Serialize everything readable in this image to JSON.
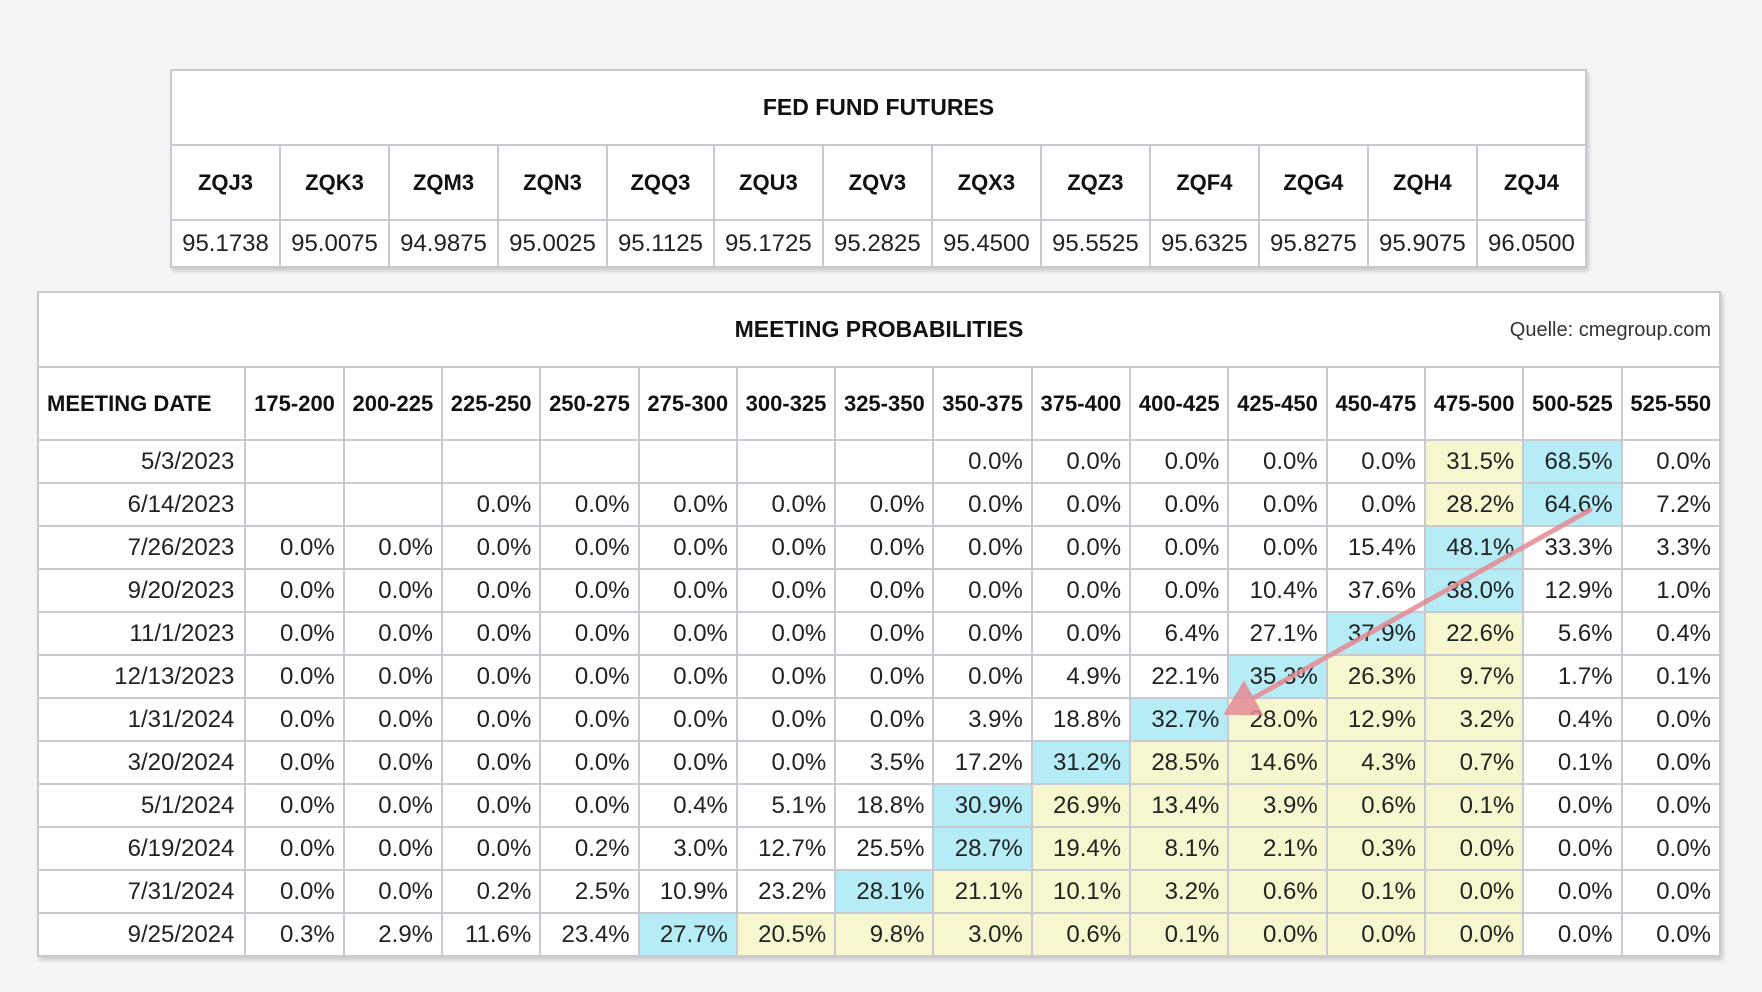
{
  "colors": {
    "cyan": "#b6ecf6",
    "yellow": "#f7f7cf",
    "arrow": "#e58a93",
    "border": "#c9c9d2"
  },
  "fed": {
    "title": "FED FUND FUTURES",
    "contracts": [
      "ZQJ3",
      "ZQK3",
      "ZQM3",
      "ZQN3",
      "ZQQ3",
      "ZQU3",
      "ZQV3",
      "ZQX3",
      "ZQZ3",
      "ZQF4",
      "ZQG4",
      "ZQH4",
      "ZQJ4"
    ],
    "prices": [
      "95.1738",
      "95.0075",
      "94.9875",
      "95.0025",
      "95.1125",
      "95.1725",
      "95.2825",
      "95.4500",
      "95.5525",
      "95.6325",
      "95.8275",
      "95.9075",
      "96.0500"
    ]
  },
  "probabilities": {
    "title": "MEETING PROBABILITIES",
    "source": "Quelle: cmegroup.com",
    "date_header": "MEETING DATE",
    "ranges": [
      "175-200",
      "200-225",
      "225-250",
      "250-275",
      "275-300",
      "300-325",
      "325-350",
      "350-375",
      "375-400",
      "400-425",
      "425-450",
      "450-475",
      "475-500",
      "500-525",
      "525-550"
    ],
    "rows": [
      {
        "date": "5/3/2023",
        "values": [
          "",
          "",
          "",
          "",
          "",
          "",
          "",
          "0.0%",
          "0.0%",
          "0.0%",
          "0.0%",
          "0.0%",
          "31.5%",
          "68.5%",
          "0.0%"
        ],
        "hl": [
          "",
          "",
          "",
          "",
          "",
          "",
          "",
          "",
          "",
          "",
          "",
          "",
          "y",
          "c",
          ""
        ]
      },
      {
        "date": "6/14/2023",
        "values": [
          "",
          "",
          "0.0%",
          "0.0%",
          "0.0%",
          "0.0%",
          "0.0%",
          "0.0%",
          "0.0%",
          "0.0%",
          "0.0%",
          "0.0%",
          "28.2%",
          "64.6%",
          "7.2%"
        ],
        "hl": [
          "",
          "",
          "",
          "",
          "",
          "",
          "",
          "",
          "",
          "",
          "",
          "",
          "y",
          "c",
          ""
        ]
      },
      {
        "date": "7/26/2023",
        "values": [
          "0.0%",
          "0.0%",
          "0.0%",
          "0.0%",
          "0.0%",
          "0.0%",
          "0.0%",
          "0.0%",
          "0.0%",
          "0.0%",
          "0.0%",
          "15.4%",
          "48.1%",
          "33.3%",
          "3.3%"
        ],
        "hl": [
          "",
          "",
          "",
          "",
          "",
          "",
          "",
          "",
          "",
          "",
          "",
          "",
          "c",
          "",
          ""
        ]
      },
      {
        "date": "9/20/2023",
        "values": [
          "0.0%",
          "0.0%",
          "0.0%",
          "0.0%",
          "0.0%",
          "0.0%",
          "0.0%",
          "0.0%",
          "0.0%",
          "0.0%",
          "10.4%",
          "37.6%",
          "38.0%",
          "12.9%",
          "1.0%"
        ],
        "hl": [
          "",
          "",
          "",
          "",
          "",
          "",
          "",
          "",
          "",
          "",
          "",
          "",
          "c",
          "",
          ""
        ]
      },
      {
        "date": "11/1/2023",
        "values": [
          "0.0%",
          "0.0%",
          "0.0%",
          "0.0%",
          "0.0%",
          "0.0%",
          "0.0%",
          "0.0%",
          "0.0%",
          "6.4%",
          "27.1%",
          "37.9%",
          "22.6%",
          "5.6%",
          "0.4%"
        ],
        "hl": [
          "",
          "",
          "",
          "",
          "",
          "",
          "",
          "",
          "",
          "",
          "",
          "c",
          "y",
          "",
          ""
        ]
      },
      {
        "date": "12/13/2023",
        "values": [
          "0.0%",
          "0.0%",
          "0.0%",
          "0.0%",
          "0.0%",
          "0.0%",
          "0.0%",
          "0.0%",
          "4.9%",
          "22.1%",
          "35.3%",
          "26.3%",
          "9.7%",
          "1.7%",
          "0.1%"
        ],
        "hl": [
          "",
          "",
          "",
          "",
          "",
          "",
          "",
          "",
          "",
          "",
          "c",
          "y",
          "y",
          "",
          ""
        ]
      },
      {
        "date": "1/31/2024",
        "values": [
          "0.0%",
          "0.0%",
          "0.0%",
          "0.0%",
          "0.0%",
          "0.0%",
          "0.0%",
          "3.9%",
          "18.8%",
          "32.7%",
          "28.0%",
          "12.9%",
          "3.2%",
          "0.4%",
          "0.0%"
        ],
        "hl": [
          "",
          "",
          "",
          "",
          "",
          "",
          "",
          "",
          "",
          "c",
          "y",
          "y",
          "y",
          "",
          ""
        ]
      },
      {
        "date": "3/20/2024",
        "values": [
          "0.0%",
          "0.0%",
          "0.0%",
          "0.0%",
          "0.0%",
          "0.0%",
          "3.5%",
          "17.2%",
          "31.2%",
          "28.5%",
          "14.6%",
          "4.3%",
          "0.7%",
          "0.1%",
          "0.0%"
        ],
        "hl": [
          "",
          "",
          "",
          "",
          "",
          "",
          "",
          "",
          "c",
          "y",
          "y",
          "y",
          "y",
          "",
          ""
        ]
      },
      {
        "date": "5/1/2024",
        "values": [
          "0.0%",
          "0.0%",
          "0.0%",
          "0.0%",
          "0.4%",
          "5.1%",
          "18.8%",
          "30.9%",
          "26.9%",
          "13.4%",
          "3.9%",
          "0.6%",
          "0.1%",
          "0.0%",
          "0.0%"
        ],
        "hl": [
          "",
          "",
          "",
          "",
          "",
          "",
          "",
          "c",
          "y",
          "y",
          "y",
          "y",
          "y",
          "",
          ""
        ]
      },
      {
        "date": "6/19/2024",
        "values": [
          "0.0%",
          "0.0%",
          "0.0%",
          "0.2%",
          "3.0%",
          "12.7%",
          "25.5%",
          "28.7%",
          "19.4%",
          "8.1%",
          "2.1%",
          "0.3%",
          "0.0%",
          "0.0%",
          "0.0%"
        ],
        "hl": [
          "",
          "",
          "",
          "",
          "",
          "",
          "",
          "c",
          "y",
          "y",
          "y",
          "y",
          "y",
          "",
          ""
        ]
      },
      {
        "date": "7/31/2024",
        "values": [
          "0.0%",
          "0.0%",
          "0.2%",
          "2.5%",
          "10.9%",
          "23.2%",
          "28.1%",
          "21.1%",
          "10.1%",
          "3.2%",
          "0.6%",
          "0.1%",
          "0.0%",
          "0.0%",
          "0.0%"
        ],
        "hl": [
          "",
          "",
          "",
          "",
          "",
          "",
          "c",
          "y",
          "y",
          "y",
          "y",
          "y",
          "y",
          "",
          ""
        ]
      },
      {
        "date": "9/25/2024",
        "values": [
          "0.3%",
          "2.9%",
          "11.6%",
          "23.4%",
          "27.7%",
          "20.5%",
          "9.8%",
          "3.0%",
          "0.6%",
          "0.1%",
          "0.0%",
          "0.0%",
          "0.0%",
          "0.0%",
          "0.0%"
        ],
        "hl": [
          "",
          "",
          "",
          "",
          "c",
          "y",
          "y",
          "y",
          "y",
          "y",
          "y",
          "y",
          "y",
          "",
          ""
        ]
      }
    ]
  }
}
